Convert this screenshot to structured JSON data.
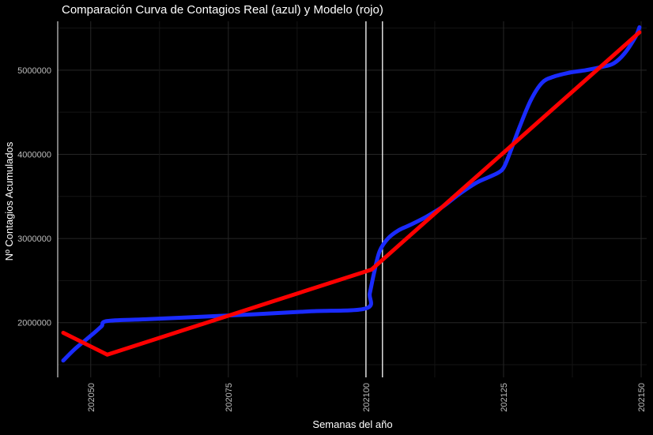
{
  "chart_data": {
    "type": "line",
    "title": "Comparación Curva de Contagios Real (azul) y Modelo (rojo)",
    "xlabel": "Semanas del año",
    "ylabel": "Nº Contagios Acumulados",
    "x_ticks": [
      "202050",
      "202075",
      "202100",
      "202125",
      "202150"
    ],
    "y_ticks": [
      "2000000",
      "3000000",
      "4000000",
      "5000000"
    ],
    "xlim": [
      202044,
      202151
    ],
    "ylim": [
      1350000,
      5580000
    ],
    "grid": true,
    "theme": "dark",
    "vertical_lines": [
      202044,
      202100,
      202103
    ],
    "series": [
      {
        "color": "#1a2bff",
        "x": [
          202045,
          202047,
          202049,
          202051,
          202052,
          202053,
          202060,
          202070,
          202080,
          202090,
          202100,
          202100.7,
          202101.5,
          202102.5,
          202104,
          202106,
          202108,
          202111,
          202114,
          202117,
          202120,
          202122,
          202124,
          202125,
          202126,
          202128,
          202130,
          202132,
          202134,
          202137,
          202140,
          202143,
          202145,
          202147,
          202149,
          202149.7
        ],
        "values": [
          1550000,
          1680000,
          1790000,
          1900000,
          1960000,
          2020000,
          2040000,
          2070000,
          2100000,
          2135000,
          2170000,
          2350000,
          2600000,
          2850000,
          3000000,
          3100000,
          3160000,
          3260000,
          3380000,
          3530000,
          3660000,
          3720000,
          3780000,
          3840000,
          3990000,
          4340000,
          4650000,
          4850000,
          4920000,
          4970000,
          5000000,
          5040000,
          5080000,
          5200000,
          5400000,
          5510000
        ]
      },
      {
        "color": "#ff0000",
        "x": [
          202045,
          202053,
          202101,
          202149.7
        ],
        "values": [
          1880000,
          1620000,
          2630000,
          5450000
        ]
      }
    ]
  }
}
